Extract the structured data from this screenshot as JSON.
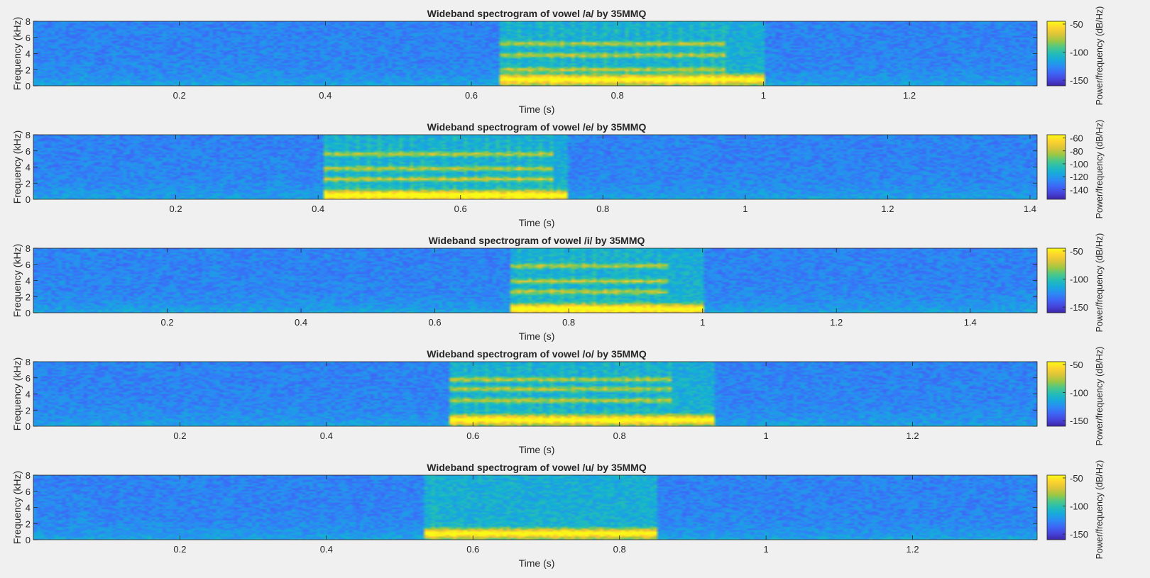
{
  "figure": {
    "background": "#f0f0f0"
  },
  "chart_data": [
    {
      "type": "heatmap",
      "title": "Wideband spectrogram of vowel /a/ by 35MMQ",
      "xlabel": "Time (s)",
      "ylabel": "Frequency (kHz)",
      "colorbar_label": "Power/frequency (dB/Hz)",
      "xlim": [
        0.0,
        1.375
      ],
      "ylim": [
        0,
        8
      ],
      "xticks": [
        0.2,
        0.4,
        0.6,
        0.8,
        1,
        1.2
      ],
      "yticks": [
        0,
        2,
        4,
        6,
        8
      ],
      "clim": [
        -160,
        -45
      ],
      "cticks": [
        -50,
        -100,
        -150
      ],
      "voiced_interval": [
        0.64,
        1.0
      ],
      "formant_bands_khz": [
        0.8,
        2.0,
        3.8,
        5.2
      ],
      "harmonic_extent_s": 0.95,
      "colormap": "parula"
    },
    {
      "type": "heatmap",
      "title": "Wideband spectrogram of vowel /e/ by 35MMQ",
      "xlabel": "Time (s)",
      "ylabel": "Frequency (kHz)",
      "colorbar_label": "Power/frequency (dB/Hz)",
      "xlim": [
        0.0,
        1.41
      ],
      "ylim": [
        0,
        8
      ],
      "xticks": [
        0.2,
        0.4,
        0.6,
        0.8,
        1,
        1.2,
        1.4
      ],
      "yticks": [
        0,
        2,
        4,
        6,
        8
      ],
      "clim": [
        -155,
        -55
      ],
      "cticks": [
        -60,
        -80,
        -100,
        -120,
        -140
      ],
      "voiced_interval": [
        0.41,
        0.75
      ],
      "formant_bands_khz": [
        0.5,
        2.5,
        3.8,
        5.6
      ],
      "harmonic_extent_s": 0.73,
      "colormap": "parula"
    },
    {
      "type": "heatmap",
      "title": "Wideband spectrogram of vowel /i/ by 35MMQ",
      "xlabel": "Time (s)",
      "ylabel": "Frequency (kHz)",
      "colorbar_label": "Power/frequency (dB/Hz)",
      "xlim": [
        0.0,
        1.5
      ],
      "ylim": [
        0,
        8
      ],
      "xticks": [
        0.2,
        0.4,
        0.6,
        0.8,
        1,
        1.2,
        1.4
      ],
      "yticks": [
        0,
        2,
        4,
        6,
        8
      ],
      "clim": [
        -160,
        -45
      ],
      "cticks": [
        -50,
        -100,
        -150
      ],
      "voiced_interval": [
        0.71,
        1.0
      ],
      "formant_bands_khz": [
        0.5,
        2.6,
        3.9,
        5.8
      ],
      "harmonic_extent_s": 0.95,
      "colormap": "parula"
    },
    {
      "type": "heatmap",
      "title": "Wideband spectrogram of vowel /o/ by 35MMQ",
      "xlabel": "Time (s)",
      "ylabel": "Frequency (kHz)",
      "colorbar_label": "Power/frequency (dB/Hz)",
      "xlim": [
        0.0,
        1.37
      ],
      "ylim": [
        0,
        8
      ],
      "xticks": [
        0.2,
        0.4,
        0.6,
        0.8,
        1,
        1.2
      ],
      "yticks": [
        0,
        2,
        4,
        6,
        8
      ],
      "clim": [
        -160,
        -45
      ],
      "cticks": [
        -50,
        -100,
        -150
      ],
      "voiced_interval": [
        0.57,
        0.93
      ],
      "formant_bands_khz": [
        0.8,
        3.2,
        4.6,
        5.8
      ],
      "harmonic_extent_s": 0.87,
      "colormap": "parula"
    },
    {
      "type": "heatmap",
      "title": "Wideband spectrogram of vowel /u/ by 35MMQ",
      "xlabel": "Time (s)",
      "ylabel": "Frequency (kHz)",
      "colorbar_label": "Power/frequency (dB/Hz)",
      "xlim": [
        0.0,
        1.37
      ],
      "ylim": [
        0,
        8
      ],
      "xticks": [
        0.2,
        0.4,
        0.6,
        0.8,
        1,
        1.2
      ],
      "yticks": [
        0,
        2,
        4,
        6,
        8
      ],
      "clim": [
        -160,
        -45
      ],
      "cticks": [
        -50,
        -100,
        -150
      ],
      "voiced_interval": [
        0.535,
        0.85
      ],
      "formant_bands_khz": [
        0.8
      ],
      "harmonic_extent_s": 0.55,
      "colormap": "parula"
    }
  ]
}
